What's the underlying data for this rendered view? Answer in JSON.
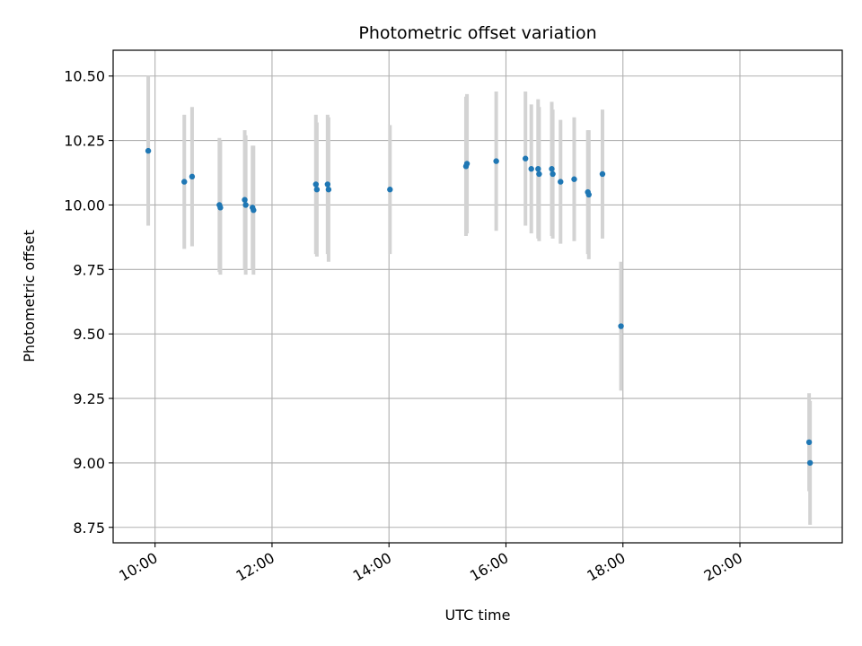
{
  "chart_data": {
    "type": "scatter",
    "title": "Photometric offset variation",
    "xlabel": "UTC time",
    "ylabel": "Photometric offset",
    "x_is_time": true,
    "xlim": [
      "09:17",
      "21:45"
    ],
    "ylim": [
      8.69,
      10.6
    ],
    "xticks": [
      "10:00",
      "12:00",
      "14:00",
      "16:00",
      "18:00",
      "20:00"
    ],
    "yticks": [
      8.75,
      9.0,
      9.25,
      9.5,
      9.75,
      10.0,
      10.25,
      10.5
    ],
    "ytick_labels": [
      "8.75",
      "9.00",
      "9.25",
      "9.50",
      "9.75",
      "10.00",
      "10.25",
      "10.50"
    ],
    "grid": true,
    "colors": {
      "point": "#1f77b4",
      "errorbar": "#d3d3d3",
      "grid": "#b0b0b0"
    },
    "points": [
      {
        "x": "09:53",
        "y": 10.21,
        "yerr": 0.29
      },
      {
        "x": "10:30",
        "y": 10.09,
        "yerr": 0.26
      },
      {
        "x": "10:38",
        "y": 10.11,
        "yerr": 0.27
      },
      {
        "x": "11:06",
        "y": 10.0,
        "yerr": 0.26
      },
      {
        "x": "11:07",
        "y": 9.99,
        "yerr": 0.26
      },
      {
        "x": "11:32",
        "y": 10.02,
        "yerr": 0.27
      },
      {
        "x": "11:33",
        "y": 10.0,
        "yerr": 0.27
      },
      {
        "x": "11:40",
        "y": 9.99,
        "yerr": 0.24
      },
      {
        "x": "11:41",
        "y": 9.98,
        "yerr": 0.25
      },
      {
        "x": "12:45",
        "y": 10.08,
        "yerr": 0.27
      },
      {
        "x": "12:46",
        "y": 10.06,
        "yerr": 0.26
      },
      {
        "x": "12:57",
        "y": 10.08,
        "yerr": 0.27
      },
      {
        "x": "12:58",
        "y": 10.06,
        "yerr": 0.28
      },
      {
        "x": "14:01",
        "y": 10.06,
        "yerr": 0.25
      },
      {
        "x": "15:19",
        "y": 10.15,
        "yerr": 0.27
      },
      {
        "x": "15:20",
        "y": 10.16,
        "yerr": 0.27
      },
      {
        "x": "15:50",
        "y": 10.17,
        "yerr": 0.27
      },
      {
        "x": "16:20",
        "y": 10.18,
        "yerr": 0.26
      },
      {
        "x": "16:26",
        "y": 10.14,
        "yerr": 0.25
      },
      {
        "x": "16:33",
        "y": 10.14,
        "yerr": 0.27
      },
      {
        "x": "16:34",
        "y": 10.12,
        "yerr": 0.26
      },
      {
        "x": "16:47",
        "y": 10.14,
        "yerr": 0.26
      },
      {
        "x": "16:48",
        "y": 10.12,
        "yerr": 0.25
      },
      {
        "x": "16:56",
        "y": 10.09,
        "yerr": 0.24
      },
      {
        "x": "17:10",
        "y": 10.1,
        "yerr": 0.24
      },
      {
        "x": "17:24",
        "y": 10.05,
        "yerr": 0.24
      },
      {
        "x": "17:25",
        "y": 10.04,
        "yerr": 0.25
      },
      {
        "x": "17:39",
        "y": 10.12,
        "yerr": 0.25
      },
      {
        "x": "17:58",
        "y": 9.53,
        "yerr": 0.25
      },
      {
        "x": "21:11",
        "y": 9.08,
        "yerr": 0.19
      },
      {
        "x": "21:12",
        "y": 9.0,
        "yerr": 0.24
      }
    ]
  }
}
